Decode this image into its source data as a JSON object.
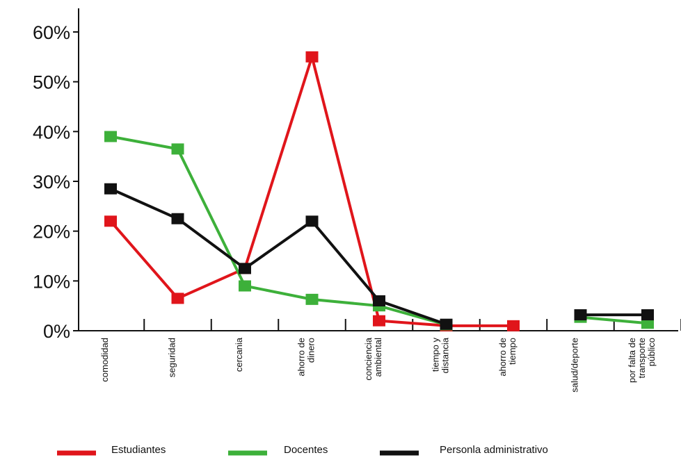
{
  "chart_data": {
    "type": "line",
    "title": "",
    "xlabel": "",
    "ylabel": "",
    "ylim": [
      0,
      60
    ],
    "y_ticks": [
      "0%",
      "10%",
      "20%",
      "30%",
      "40%",
      "50%",
      "60%"
    ],
    "y_tick_values": [
      0,
      10,
      20,
      30,
      40,
      50,
      60
    ],
    "categories": [
      [
        "comodidad"
      ],
      [
        "seguridad"
      ],
      [
        "cercania"
      ],
      [
        "ahorro de",
        "dinero"
      ],
      [
        "conciencia",
        "ambiental"
      ],
      [
        "tiempo  y",
        "distancia"
      ],
      [
        "ahorro de",
        "tiempo"
      ],
      [
        "salud/deporte"
      ],
      [
        "por falta de",
        "transporte",
        "público"
      ]
    ],
    "series": [
      {
        "name": "Estudiantes",
        "color": "#e0151b",
        "values": [
          22,
          6.5,
          12.5,
          55,
          2,
          1,
          1,
          null,
          null
        ]
      },
      {
        "name": "Docentes",
        "color": "#3db03a",
        "values": [
          39,
          36.5,
          9,
          6.3,
          5,
          1.2,
          null,
          2.7,
          1.5
        ]
      },
      {
        "name": "Personla administrativo",
        "color": "#111111",
        "values": [
          28.5,
          22.5,
          12.5,
          22,
          6,
          1.3,
          null,
          3.2,
          3.2
        ]
      }
    ],
    "grid": false,
    "legend": "bottom"
  }
}
